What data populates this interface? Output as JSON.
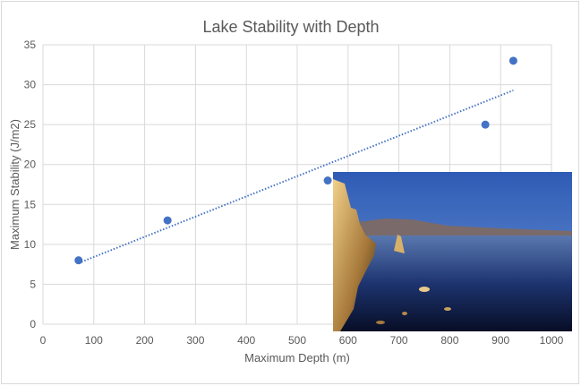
{
  "chart_data": {
    "type": "scatter",
    "title": "Lake Stability with Depth",
    "xlabel": "Maximum Depth (m)",
    "ylabel": "Maximum Stability (J/m2)",
    "xlim": [
      0,
      1000
    ],
    "ylim": [
      0,
      35
    ],
    "xticks": [
      0,
      100,
      200,
      300,
      400,
      500,
      600,
      700,
      800,
      900,
      1000
    ],
    "yticks": [
      0,
      5,
      10,
      15,
      20,
      25,
      30,
      35
    ],
    "grid": true,
    "legend": "none",
    "points": [
      {
        "x": 70,
        "y": 8
      },
      {
        "x": 245,
        "y": 13
      },
      {
        "x": 560,
        "y": 18
      },
      {
        "x": 870,
        "y": 25
      },
      {
        "x": 925,
        "y": 33
      }
    ],
    "trendline": {
      "type": "linear",
      "style": "dotted"
    },
    "colors": {
      "marker": "#4472c4",
      "grid": "#d9d9d9",
      "text": "#595959"
    }
  },
  "overlay_image": {
    "subject": "lake-photo"
  }
}
